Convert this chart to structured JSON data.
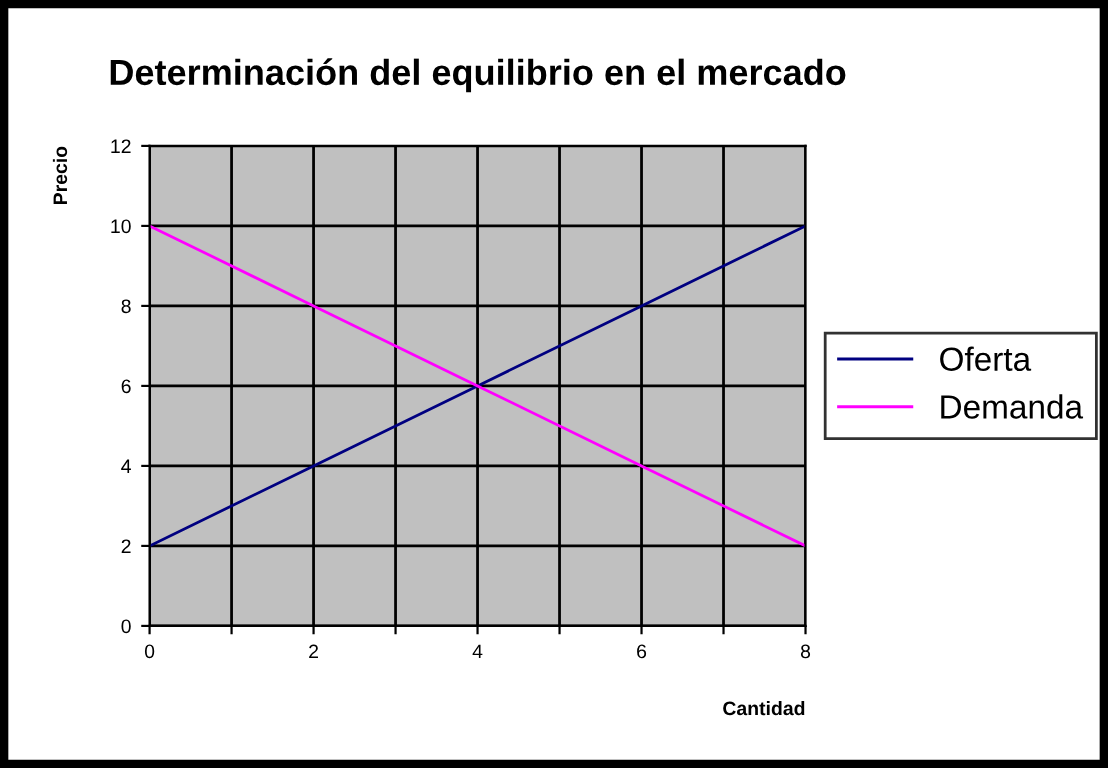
{
  "chart_data": {
    "type": "line",
    "title": "Determinación del equilibrio en el mercado",
    "xlabel": "Cantidad",
    "ylabel": "Precio",
    "series": [
      {
        "name": "Oferta",
        "color": "#000080",
        "values": [
          2,
          4,
          6,
          8,
          10
        ]
      },
      {
        "name": "Demanda",
        "color": "#ff00ff",
        "values": [
          10,
          8,
          6,
          4,
          2
        ]
      }
    ],
    "x": [
      0,
      2,
      4,
      6,
      8
    ],
    "xlim": [
      0,
      8
    ],
    "xticks": [
      0,
      {
        "value": 1,
        "label": null
      },
      2,
      {
        "value": 3,
        "label": null
      },
      4,
      {
        "value": 5,
        "label": null
      },
      6,
      {
        "value": 7,
        "label": null
      },
      8
    ],
    "ylim": [
      0,
      12
    ],
    "yticks": [
      0,
      2,
      4,
      6,
      8,
      10,
      12
    ],
    "grid": true,
    "legend": "right",
    "marker": "none",
    "line_style": "solid"
  }
}
